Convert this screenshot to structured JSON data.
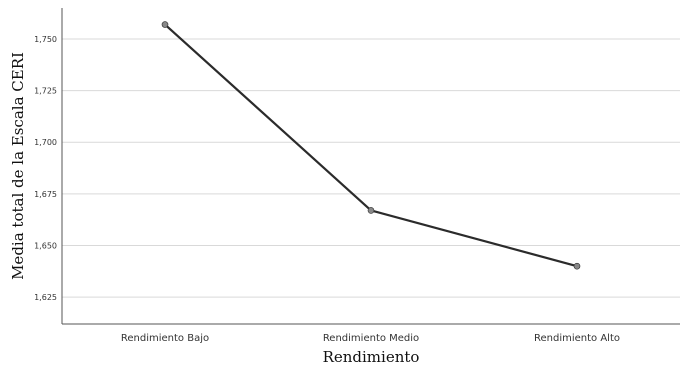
{
  "chart_data": {
    "type": "line",
    "title": "",
    "xlabel": "Rendimiento",
    "ylabel": "Media total de la Escala CERI",
    "categories": [
      "Rendimiento Bajo",
      "Rendimiento Medio",
      "Rendimiento Alto"
    ],
    "series": [
      {
        "values": [
          1.757,
          1.667,
          1.64
        ]
      }
    ],
    "yticks": [
      1.625,
      1.65,
      1.675,
      1.7,
      1.725,
      1.75
    ],
    "ytick_labels": [
      "1,625",
      "1,650",
      "1,675",
      "1,700",
      "1,725",
      "1,750"
    ],
    "ylim": [
      1.612,
      1.765
    ],
    "grid": "horizontal",
    "legend": "none",
    "colors": {
      "line": "#2b2b2b",
      "marker": "#888888",
      "grid": "#d9d9d9",
      "axis": "#555555"
    }
  }
}
